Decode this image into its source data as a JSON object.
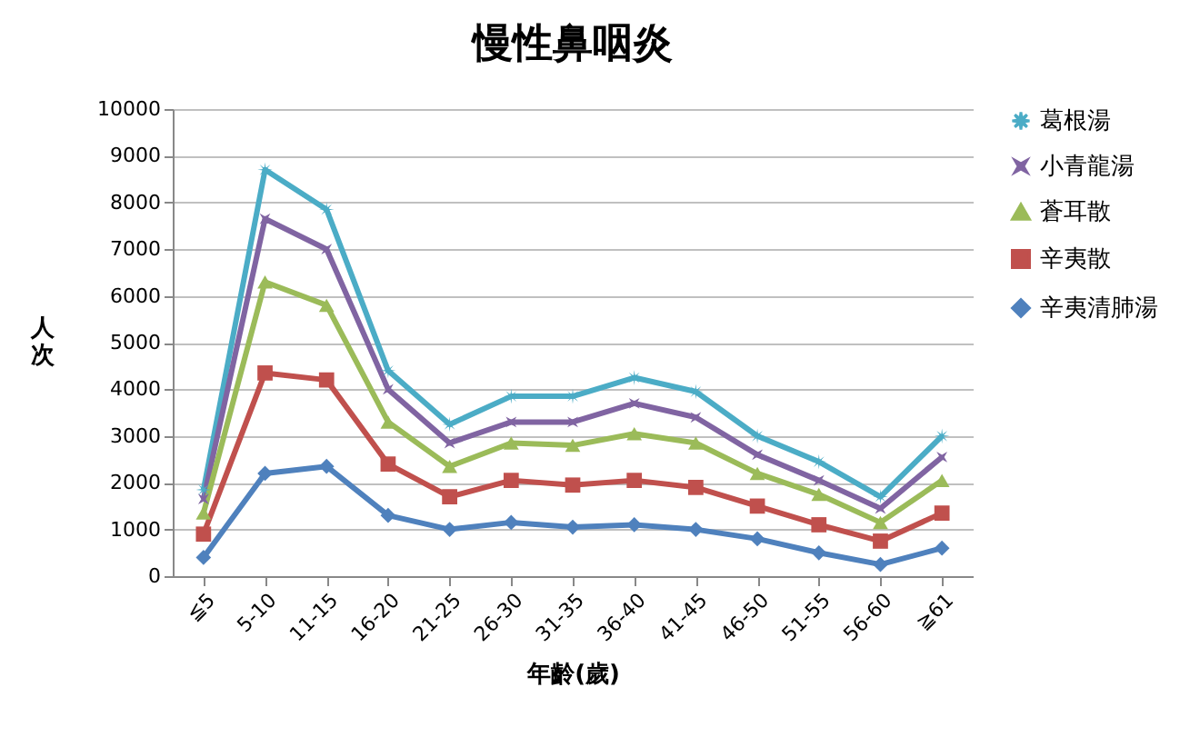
{
  "chart_data": {
    "type": "line",
    "title": "慢性鼻咽炎",
    "xlabel": "年齡(歲)",
    "ylabel": "人次",
    "categories": [
      "≦5",
      "5-10",
      "11-15",
      "16-20",
      "21-25",
      "26-30",
      "31-35",
      "36-40",
      "41-45",
      "46-50",
      "51-55",
      "56-60",
      "≧61"
    ],
    "ylim": [
      0,
      10000
    ],
    "yticks": [
      0,
      1000,
      2000,
      3000,
      4000,
      5000,
      6000,
      7000,
      8000,
      9000,
      10000
    ],
    "grid": "y",
    "legend": "right",
    "series": [
      {
        "name": "葛根湯",
        "color": "#4bacc6",
        "marker": "star",
        "values": [
          1850,
          8700,
          7850,
          4400,
          3250,
          3850,
          3850,
          4250,
          3950,
          3000,
          2450,
          1700,
          3000
        ]
      },
      {
        "name": "小青龍湯",
        "color": "#8064a2",
        "marker": "cross",
        "values": [
          1650,
          7650,
          7000,
          4000,
          2850,
          3300,
          3300,
          3700,
          3400,
          2600,
          2050,
          1450,
          2550
        ]
      },
      {
        "name": "蒼耳散",
        "color": "#9bbb59",
        "marker": "triangle",
        "values": [
          1350,
          6300,
          5800,
          3300,
          2350,
          2850,
          2800,
          3050,
          2850,
          2200,
          1750,
          1150,
          2050
        ]
      },
      {
        "name": "辛夷散",
        "color": "#c0504d",
        "marker": "square",
        "values": [
          900,
          4350,
          4200,
          2400,
          1700,
          2050,
          1950,
          2050,
          1900,
          1500,
          1100,
          750,
          1350
        ]
      },
      {
        "name": "辛夷清肺湯",
        "color": "#4f81bd",
        "marker": "diamond",
        "values": [
          400,
          2200,
          2350,
          1300,
          1000,
          1150,
          1050,
          1100,
          1000,
          800,
          500,
          250,
          600
        ]
      }
    ]
  }
}
